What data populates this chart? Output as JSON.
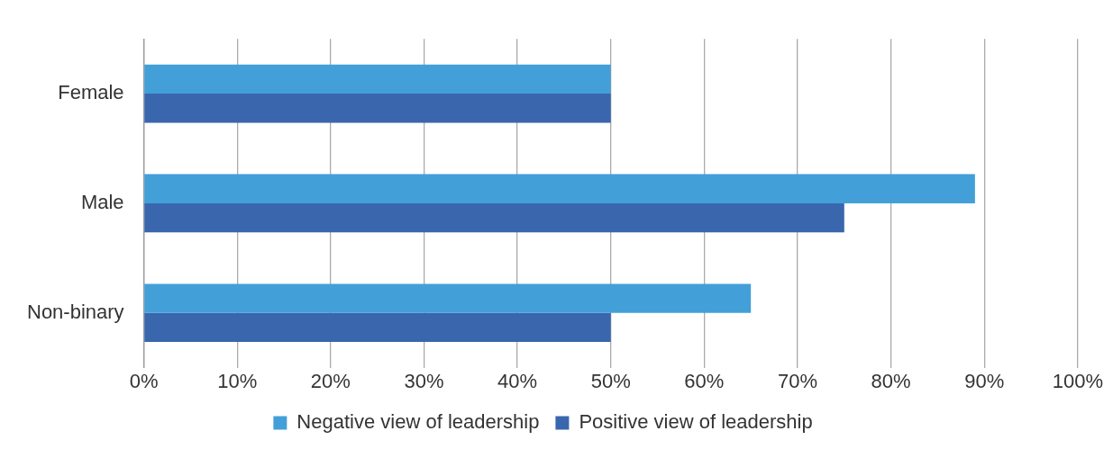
{
  "chart_data": {
    "type": "bar",
    "orientation": "horizontal",
    "categories": [
      "Female",
      "Male",
      "Non-binary"
    ],
    "series": [
      {
        "name": "Negative view of leadership",
        "color": "#439fd8",
        "values": [
          50,
          89,
          65
        ]
      },
      {
        "name": "Positive view of leadership",
        "color": "#3a66ae",
        "values": [
          50,
          75,
          50
        ]
      }
    ],
    "xlim": [
      0,
      100
    ],
    "xticks": [
      {
        "value": 0,
        "label": "0%"
      },
      {
        "value": 10,
        "label": "10%"
      },
      {
        "value": 20,
        "label": "20%"
      },
      {
        "value": 30,
        "label": "30%"
      },
      {
        "value": 40,
        "label": "40%"
      },
      {
        "value": 50,
        "label": "50%"
      },
      {
        "value": 60,
        "label": "60%"
      },
      {
        "value": 70,
        "label": "70%"
      },
      {
        "value": 80,
        "label": "80%"
      },
      {
        "value": 90,
        "label": "90%"
      },
      {
        "value": 100,
        "label": "100%"
      }
    ],
    "grid": "x",
    "legend": "bottom"
  }
}
